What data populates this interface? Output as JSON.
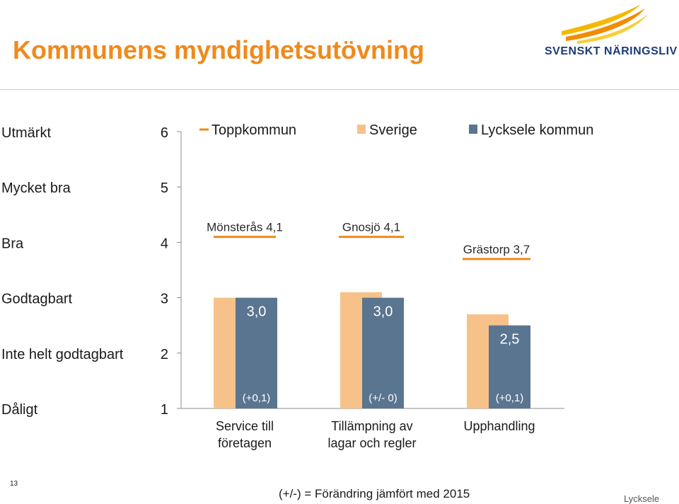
{
  "header": {
    "title": "Kommunens myndighetsutövning",
    "logo_text": "SVENSKT NÄRINGSLIV"
  },
  "footer": {
    "page_number": "13",
    "note": "(+/-) = Förändring jämfört med 2015",
    "brand": "Lycksele"
  },
  "chart_data": {
    "type": "bar",
    "categories": [
      "Service till företagen",
      "Tillämpning av lagar och regler",
      "Upphandling"
    ],
    "category_lines": [
      [
        "Service till",
        "företagen"
      ],
      [
        "Tillämpning av",
        "lagar och regler"
      ],
      [
        "Upphandling"
      ]
    ],
    "ylim": [
      1,
      6
    ],
    "yticks": [
      1,
      2,
      3,
      4,
      5,
      6
    ],
    "scale_labels": [
      "Dåligt",
      "Inte helt godtagbart",
      "Godtagbart",
      "Bra",
      "Mycket bra",
      "Utmärkt"
    ],
    "legend": [
      {
        "name": "Toppkommun",
        "kind": "line",
        "color": "#ef8a1c"
      },
      {
        "name": "Sverige",
        "kind": "bar",
        "color": "#f6c28a"
      },
      {
        "name": "Lycksele kommun",
        "kind": "bar",
        "color": "#5a7590"
      }
    ],
    "series": [
      {
        "name": "Sverige",
        "values": [
          3.0,
          3.1,
          2.7
        ],
        "color": "#f6c28a"
      },
      {
        "name": "Lycksele kommun",
        "values": [
          3.0,
          3.0,
          2.5
        ],
        "color": "#5a7590",
        "labels": [
          "3,0",
          "3,0",
          "2,5"
        ],
        "changes": [
          "(+0,1)",
          "(+/- 0)",
          "(+0,1)"
        ]
      }
    ],
    "top_municipalities": [
      {
        "label": "Mönsterås 4,1",
        "value": 4.1
      },
      {
        "label": "Gnosjö 4,1",
        "value": 4.1
      },
      {
        "label": "Grästorp 3,7",
        "value": 3.7
      }
    ],
    "grid": false,
    "legend_position": "top"
  }
}
